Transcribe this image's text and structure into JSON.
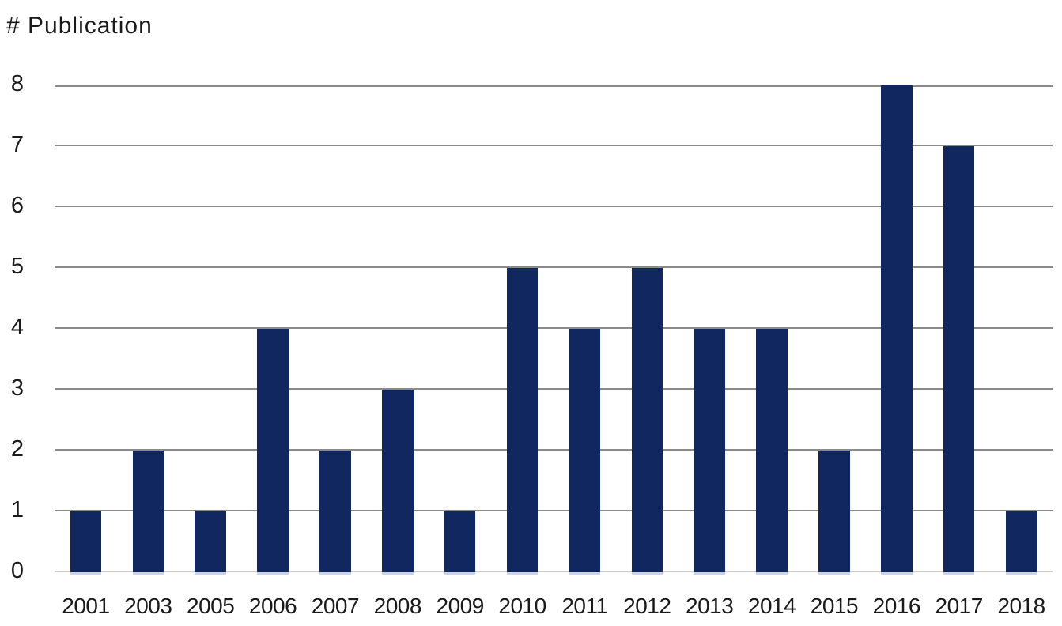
{
  "title": "# Publication",
  "chart_data": {
    "type": "bar",
    "title": "# Publication",
    "xlabel": "",
    "ylabel": "# Publication",
    "categories": [
      "2001",
      "2003",
      "2005",
      "2006",
      "2007",
      "2008",
      "2009",
      "2010",
      "2011",
      "2012",
      "2013",
      "2014",
      "2015",
      "2016",
      "2017",
      "2018"
    ],
    "values": [
      1,
      2,
      1,
      4,
      2,
      3,
      1,
      5,
      4,
      5,
      4,
      4,
      2,
      8,
      7,
      1
    ],
    "ylim": [
      0,
      8
    ],
    "yticks": [
      0,
      1,
      2,
      3,
      4,
      5,
      6,
      7,
      8
    ],
    "grid": true,
    "legend": false,
    "bar_color": "#112760",
    "gridline_color": "#8a8a8a",
    "baseline_color": "#c9c9c9",
    "text_color": "#1a1a1a"
  }
}
